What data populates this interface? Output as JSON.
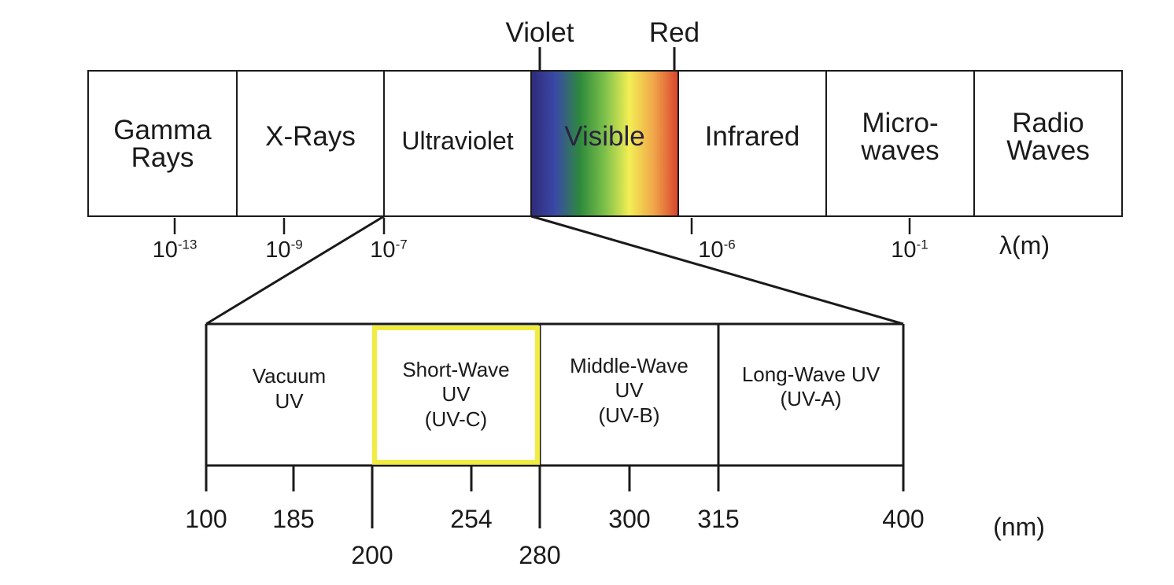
{
  "spectrum": {
    "bands": [
      {
        "line1": "Gamma",
        "line2": "Rays"
      },
      {
        "line1": "X-Rays",
        "line2": ""
      },
      {
        "line1": "Ultraviolet",
        "line2": ""
      },
      {
        "line1": "Visible",
        "line2": ""
      },
      {
        "line1": "Infrared",
        "line2": ""
      },
      {
        "line1": "Micro-",
        "line2": "waves"
      },
      {
        "line1": "Radio",
        "line2": "Waves"
      }
    ],
    "visible_ends": {
      "violet": "Violet",
      "red": "Red"
    },
    "gradient_colors": [
      "#2e2a7a",
      "#3a4aa6",
      "#2e8a3c",
      "#7cc04a",
      "#f3ee55",
      "#f0a64a",
      "#d8432e"
    ],
    "ticks": [
      {
        "base": "10",
        "exp": "-13"
      },
      {
        "base": "10",
        "exp": "-9"
      },
      {
        "base": "10",
        "exp": "-7"
      },
      {
        "base": "10",
        "exp": "-6"
      },
      {
        "base": "10",
        "exp": "-1"
      }
    ],
    "unit": "λ(m)"
  },
  "uv": {
    "bands": [
      {
        "lines": [
          "Vacuum",
          "UV"
        ]
      },
      {
        "lines": [
          "Short-Wave",
          "UV",
          "(UV-C)"
        ]
      },
      {
        "lines": [
          "Middle-Wave",
          "UV",
          "(UV-B)"
        ]
      },
      {
        "lines": [
          "Long-Wave UV",
          "(UV-A)"
        ]
      }
    ],
    "highlight_color": "#f1ec41",
    "ticks_top_row": [
      "100",
      "185",
      "254",
      "300",
      "315",
      "400"
    ],
    "ticks_bottom_row": [
      "200",
      "280"
    ],
    "unit": "(nm)"
  }
}
